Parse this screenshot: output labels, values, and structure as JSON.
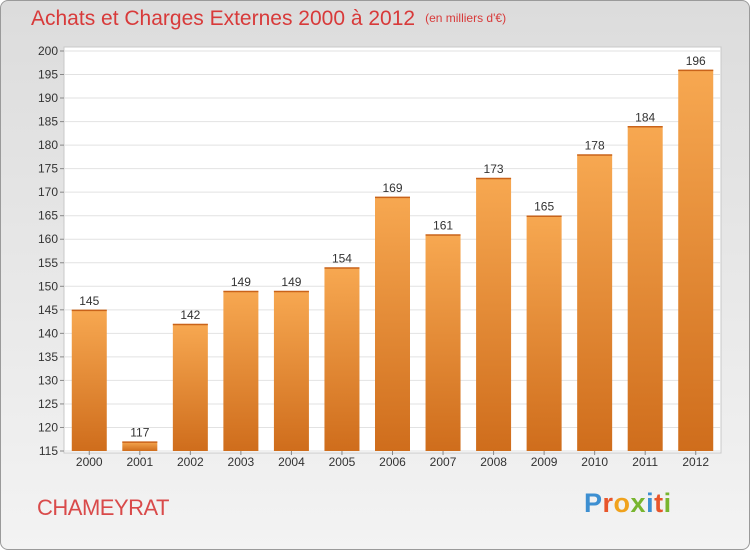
{
  "header": {
    "title": "Achats et Charges Externes 2000 à 2012",
    "unit": "(en milliers d'€)"
  },
  "commune": "CHAMEYRAT",
  "logo": {
    "text": "Proxiti",
    "letters": [
      {
        "char": "P",
        "color": "#3d8fd1"
      },
      {
        "char": "r",
        "color": "#e8552b"
      },
      {
        "char": "o",
        "color": "#f0a21d"
      },
      {
        "char": "x",
        "color": "#78b52f"
      },
      {
        "char": "i",
        "color": "#3d8fd1"
      },
      {
        "char": "t",
        "color": "#e8552b"
      },
      {
        "char": "i",
        "color": "#78b52f"
      }
    ]
  },
  "colors": {
    "bar_top": "#f7a851",
    "bar_bottom": "#cf6d1c",
    "title": "#d83a3a"
  },
  "chart_data": {
    "type": "bar",
    "categories": [
      "2000",
      "2001",
      "2002",
      "2003",
      "2004",
      "2005",
      "2006",
      "2007",
      "2008",
      "2009",
      "2010",
      "2011",
      "2012"
    ],
    "values": [
      145,
      117,
      142,
      149,
      149,
      154,
      169,
      161,
      173,
      165,
      178,
      184,
      196
    ],
    "title": "Achats et Charges Externes 2000 à 2012",
    "xlabel": "",
    "ylabel": "",
    "ylim": [
      115,
      200
    ],
    "yticks": [
      115,
      120,
      125,
      130,
      135,
      140,
      145,
      150,
      155,
      160,
      165,
      170,
      175,
      180,
      185,
      190,
      195,
      200
    ],
    "grid": true,
    "data_labels": true
  }
}
